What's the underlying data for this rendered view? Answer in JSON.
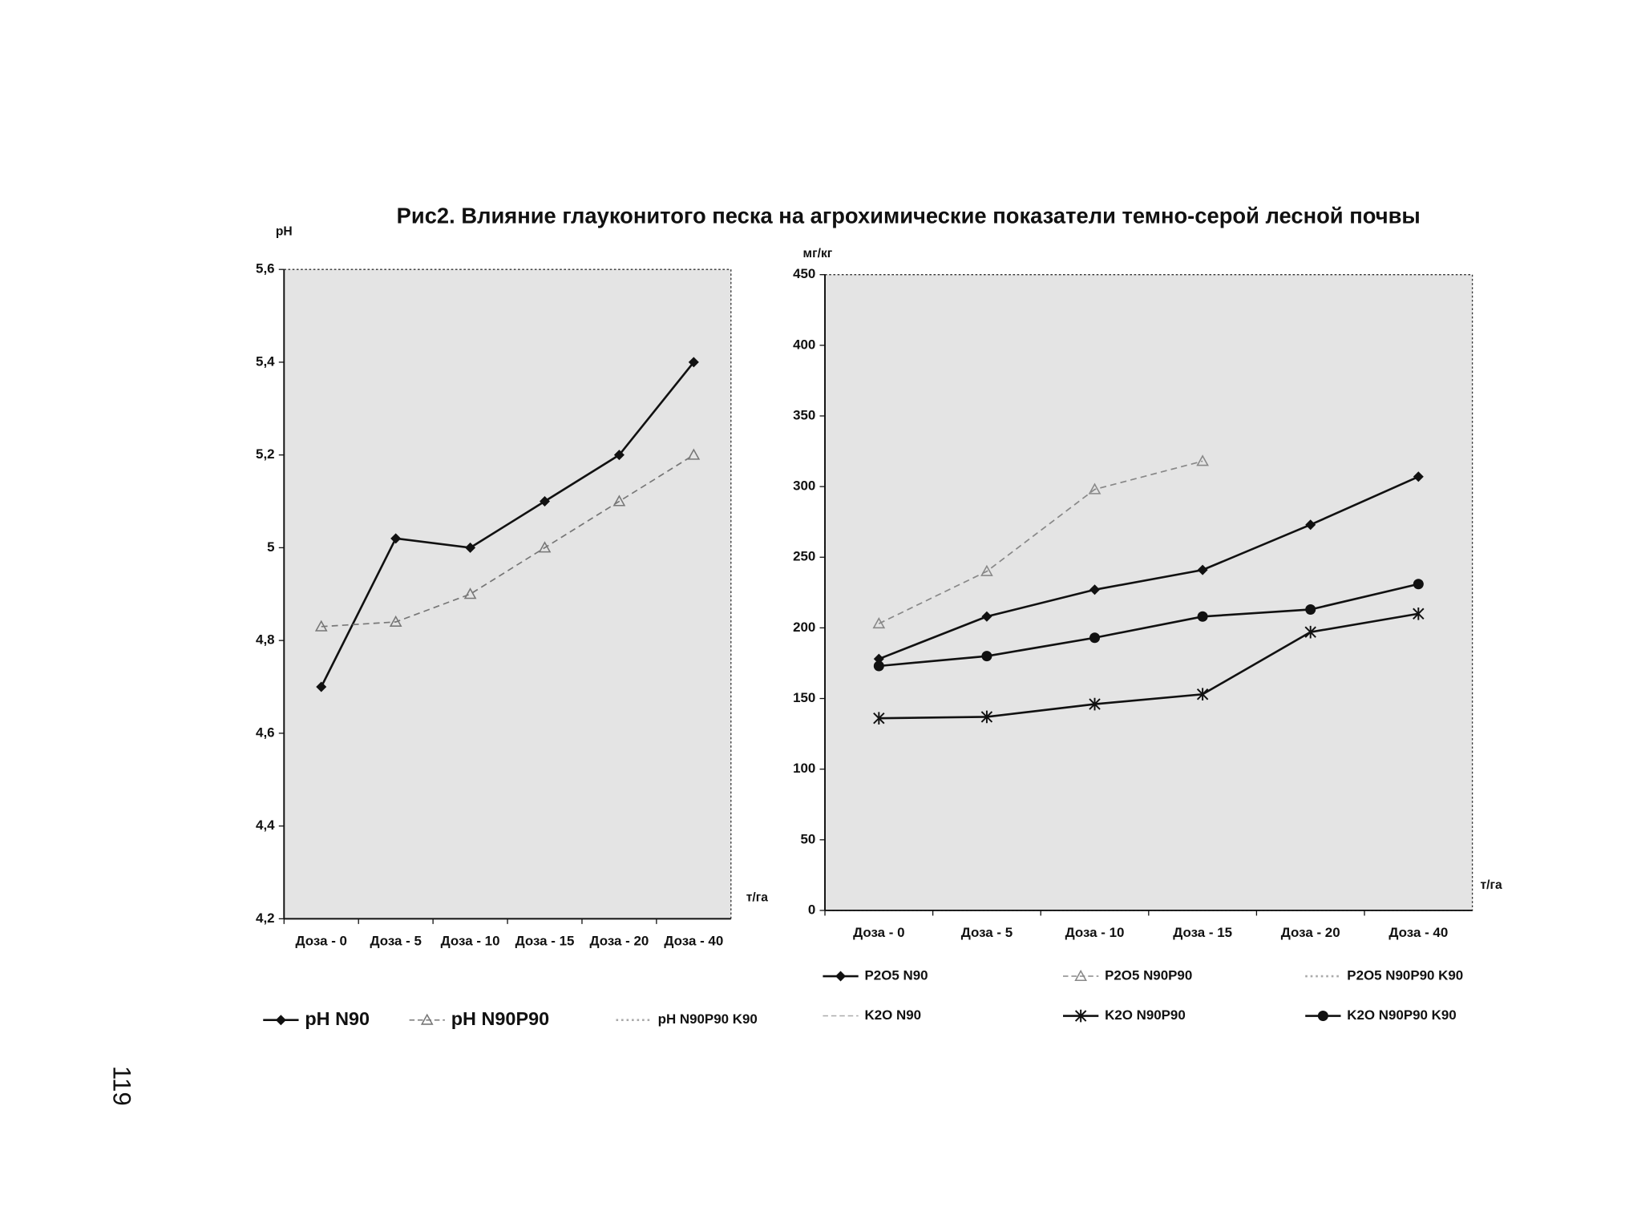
{
  "title": "Рис2. Влияние глауконитого песка на агрохимические показатели темно-серой лесной почвы",
  "page_number": "119",
  "chart_data": [
    {
      "type": "line",
      "y_label": "pH",
      "x_label": "т/га",
      "categories": [
        "Доза - 0",
        "Доза - 5",
        "Доза - 10",
        "Доза - 15",
        "Доза - 20",
        "Доза - 40"
      ],
      "ylim": [
        4.2,
        5.6
      ],
      "yticks": [
        {
          "value": 4.2,
          "label": "4,2"
        },
        {
          "value": 4.4,
          "label": "4,4"
        },
        {
          "value": 4.6,
          "label": "4,6"
        },
        {
          "value": 4.8,
          "label": "4,8"
        },
        5,
        {
          "value": 5.2,
          "label": "5,2"
        },
        {
          "value": 5.4,
          "label": "5,4"
        },
        {
          "value": 5.6,
          "label": "5,6"
        }
      ],
      "series": [
        {
          "name": "pH N90",
          "color": "#111111",
          "marker": "diamond",
          "dash": false,
          "values": [
            4.7,
            5.02,
            5.0,
            5.1,
            5.2,
            5.4
          ]
        },
        {
          "name": "pH N90P90",
          "color": "#777777",
          "marker": "triangle",
          "dash": true,
          "values": [
            4.83,
            4.84,
            4.9,
            5.0,
            5.1,
            5.2
          ]
        },
        {
          "name": "pH N90P90 K90",
          "color": "#aaaaaa",
          "marker": "none",
          "dash": false,
          "values": [
            null,
            null,
            null,
            null,
            null,
            null
          ]
        }
      ]
    },
    {
      "type": "line",
      "y_label": "мг/кг",
      "x_label": "т/га",
      "categories": [
        "Доза - 0",
        "Доза - 5",
        "Доза - 10",
        "Доза - 15",
        "Доза - 20",
        "Доза - 40"
      ],
      "ylim": [
        0,
        450
      ],
      "yticks": [
        0,
        50,
        100,
        150,
        200,
        250,
        300,
        350,
        400,
        450
      ],
      "series": [
        {
          "name": "P2O5 N90",
          "color": "#111111",
          "marker": "diamond",
          "dash": false,
          "values": [
            178,
            208,
            227,
            241,
            273,
            307
          ]
        },
        {
          "name": "P2O5 N90P90",
          "color": "#888888",
          "marker": "triangle",
          "dash": true,
          "values": [
            203,
            240,
            298,
            318,
            null,
            null
          ]
        },
        {
          "name": "P2O5 N90P90 K90",
          "color": "#aaaaaa",
          "marker": "none",
          "dash": false,
          "values": [
            null,
            null,
            null,
            null,
            null,
            null
          ]
        },
        {
          "name": "K2O N90",
          "color": "#aaaaaa",
          "marker": "none",
          "dash": true,
          "values": [
            null,
            null,
            null,
            null,
            null,
            null
          ]
        },
        {
          "name": "K2O N90P90",
          "color": "#111111",
          "marker": "star",
          "dash": false,
          "values": [
            136,
            137,
            146,
            153,
            197,
            210
          ]
        },
        {
          "name": "K2O N90P90 K90",
          "color": "#111111",
          "marker": "circle",
          "dash": false,
          "values": [
            173,
            180,
            193,
            208,
            213,
            231
          ]
        }
      ]
    }
  ]
}
